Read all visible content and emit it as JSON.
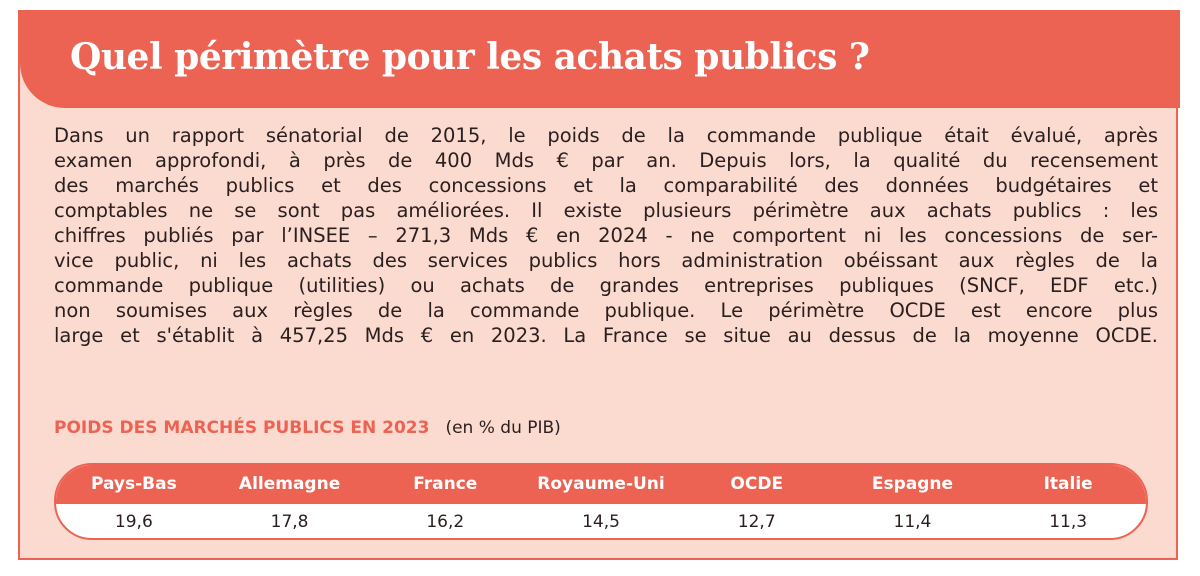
{
  "title": "Quel périmètre pour les achats publics ?",
  "body_lines": [
    "Dans un rapport sénatorial de 2015, le poids de la commande publique était évalué, après",
    "examen approfondi, à près de 400 Mds € par an.  Depuis lors, la qualité du recensement",
    "des marchés publics et des concessions et la comparabilité des données budgétaires et",
    "comptables ne se sont pas améliorées. Il existe plusieurs périmètre aux achats publics : les",
    "chiffres publiés par l’INSEE – 271,3 Mds € en 2024 - ne comportent ni les concessions de ser-",
    "vice public, ni les achats des services publics hors administration obéissant aux règles de la",
    "commande publique (utilities) ou achats de grandes entreprises publiques (SNCF, EDF etc.)",
    "non soumises aux règles de la commande publique. Le périmètre OCDE est encore plus",
    "large et s'établit à 457,25 Mds € en 2023. La France se situe au dessus de la moyenne OCDE."
  ],
  "table_title": "POIDS DES MARCHÉS PUBLICS EN 2023",
  "table_unit": "(en % du PIB)",
  "table": {
    "headers": [
      "Pays-Bas",
      "Allemagne",
      "France",
      "Royaume-Uni",
      "OCDE",
      "Espagne",
      "Italie"
    ],
    "values": [
      "19,6",
      "17,8",
      "16,2",
      "14,5",
      "12,7",
      "11,4",
      "11,3"
    ]
  },
  "colors": {
    "accent": "#ec6353",
    "background": "#fbdad0"
  }
}
